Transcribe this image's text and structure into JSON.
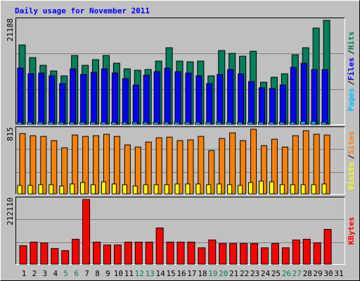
{
  "title": "Daily usage for November 2011",
  "chart_data": [
    {
      "type": "bar",
      "legend_separator": "/",
      "ylim": [
        0,
        21188
      ],
      "yticks": [
        21188
      ],
      "series": [
        {
          "name": "Hits",
          "color": "#00805c",
          "values": [
            16182,
            13604,
            12029,
            10883,
            9881,
            14034,
            12029,
            13174,
            14034,
            12458,
            11313,
            11026,
            11170,
            12888,
            15609,
            12888,
            12745,
            12888,
            9881,
            15036,
            14463,
            13890,
            14893,
            8592,
            9594,
            10310,
            14177,
            15609,
            19618,
            21188,
            null
          ]
        },
        {
          "name": "Files",
          "color": "#0000ff",
          "values": [
            11456,
            10310,
            10454,
            9881,
            8306,
            11313,
            10167,
            10597,
            11313,
            10454,
            9308,
            8019,
            10024,
            10740,
            11456,
            10740,
            10454,
            9881,
            8306,
            10167,
            11170,
            10310,
            8735,
            7446,
            7303,
            8019,
            11599,
            12458,
            11170,
            11170,
            null
          ]
        },
        {
          "name": "Pages",
          "color": "#00c0ff",
          "values": [
            430,
            430,
            430,
            430,
            430,
            430,
            430,
            430,
            430,
            430,
            430,
            430,
            430,
            430,
            430,
            430,
            430,
            430,
            430,
            430,
            430,
            430,
            430,
            430,
            430,
            430,
            430,
            573,
            573,
            430,
            null
          ]
        }
      ]
    },
    {
      "type": "bar",
      "legend_separator": "/",
      "ylim": [
        0,
        815
      ],
      "yticks": [
        815
      ],
      "series": [
        {
          "name": "Sites",
          "color": "#ff8000",
          "values": [
            761,
            734,
            725,
            672,
            582,
            743,
            725,
            734,
            752,
            725,
            618,
            591,
            654,
            708,
            716,
            672,
            681,
            725,
            546,
            699,
            770,
            672,
            815,
            609,
            690,
            591,
            734,
            797,
            752,
            743,
            null
          ]
        },
        {
          "name": "Visits",
          "color": "#ffff00",
          "values": [
            107,
            107,
            116,
            116,
            99,
            125,
            143,
            116,
            152,
            125,
            116,
            99,
            116,
            116,
            116,
            125,
            125,
            125,
            116,
            125,
            116,
            107,
            143,
            161,
            152,
            116,
            116,
            116,
            116,
            125,
            null
          ]
        }
      ]
    },
    {
      "type": "bar",
      "ylim": [
        0,
        212110
      ],
      "yticks": [
        212110
      ],
      "categories": [
        "1",
        "2",
        "3",
        "4",
        "5",
        "6",
        "7",
        "8",
        "9",
        "10",
        "11",
        "12",
        "13",
        "14",
        "15",
        "16",
        "17",
        "18",
        "19",
        "20",
        "21",
        "22",
        "23",
        "24",
        "25",
        "26",
        "27",
        "28",
        "29",
        "30",
        "31"
      ],
      "category_colors": [
        "#000000",
        "#000000",
        "#000000",
        "#000000",
        "#00805c",
        "#00805c",
        "#000000",
        "#000000",
        "#000000",
        "#000000",
        "#000000",
        "#00805c",
        "#00805c",
        "#000000",
        "#000000",
        "#000000",
        "#000000",
        "#000000",
        "#00805c",
        "#00805c",
        "#000000",
        "#000000",
        "#000000",
        "#000000",
        "#000000",
        "#00805c",
        "#00805c",
        "#000000",
        "#000000",
        "#000000",
        "#000000"
      ],
      "series": [
        {
          "name": "KBytes",
          "color": "#ff0000",
          "values": [
            60606,
            72261,
            69930,
            51282,
            44289,
            81585,
            212110,
            72261,
            62937,
            62937,
            72261,
            72261,
            72261,
            118881,
            72261,
            72261,
            72261,
            53613,
            79254,
            67599,
            67599,
            67599,
            67599,
            53613,
            67599,
            53613,
            79254,
            81585,
            69930,
            114219,
            null
          ]
        }
      ]
    }
  ]
}
